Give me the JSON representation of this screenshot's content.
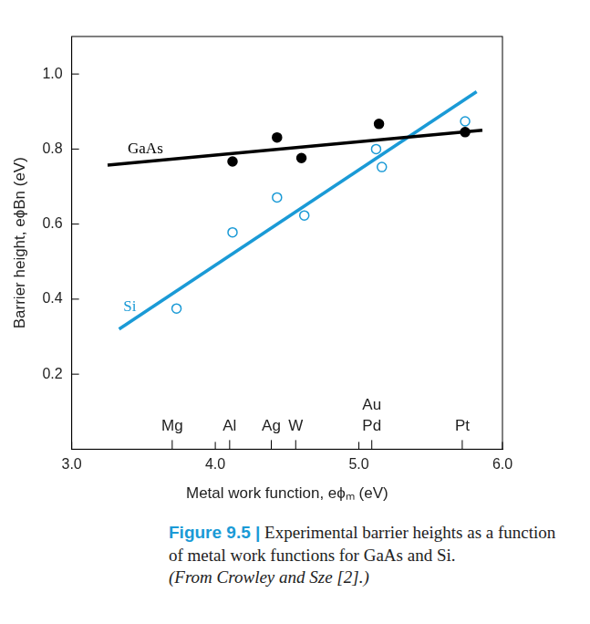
{
  "chart_data": {
    "type": "scatter",
    "x_label": "Metal work function, eϕₘ (eV)",
    "y_label": "Barrier height, eϕBn (eV)",
    "xlim": [
      3.0,
      6.0
    ],
    "xticks": [
      {
        "value": 3,
        "label": "3.0"
      },
      {
        "value": 4,
        "label": "4.0"
      },
      {
        "value": 5,
        "label": "5.0"
      },
      {
        "value": 6,
        "label": "6.0"
      }
    ],
    "ylim": [
      0,
      1.1
    ],
    "yticks": [
      {
        "value": 0.2,
        "label": "0.2"
      },
      {
        "value": 0.4,
        "label": "0.4"
      },
      {
        "value": 0.6,
        "label": "0.6"
      },
      {
        "value": 0.8,
        "label": "0.8"
      },
      {
        "value": 1.0,
        "label": "1.0"
      }
    ],
    "grid": false,
    "series": [
      {
        "name": "GaAs",
        "color": "#000000",
        "marker": "filled",
        "x": [
          4.12,
          4.43,
          4.6,
          5.14,
          5.74
        ],
        "values": [
          0.767,
          0.831,
          0.776,
          0.867,
          0.845
        ],
        "fit": {
          "x": [
            3.25,
            5.86
          ],
          "values": [
            0.757,
            0.85
          ]
        },
        "label_x": 3.39,
        "label_y": 0.8
      },
      {
        "name": "Si",
        "color": "#1a9ad6",
        "marker": "open",
        "x": [
          3.73,
          4.12,
          4.43,
          4.62,
          5.12,
          5.16,
          5.74
        ],
        "values": [
          0.375,
          0.578,
          0.671,
          0.623,
          0.8,
          0.752,
          0.874
        ],
        "fit": {
          "x": [
            3.33,
            5.82
          ],
          "values": [
            0.32,
            0.953
          ]
        },
        "label_x": 3.36,
        "label_y": 0.38
      }
    ],
    "annotations": [
      {
        "text": "Mg",
        "x": 3.7,
        "y": 0.06
      },
      {
        "text": "Al",
        "x": 4.1,
        "y": 0.06
      },
      {
        "text": "Ag",
        "x": 4.39,
        "y": 0.06
      },
      {
        "text": "W",
        "x": 4.56,
        "y": 0.06
      },
      {
        "text": "Au",
        "x": 5.09,
        "y": 0.117
      },
      {
        "text": "Pd",
        "x": 5.09,
        "y": 0.06
      },
      {
        "text": "Pt",
        "x": 5.72,
        "y": 0.06
      }
    ],
    "caption": {
      "figure": "Figure 9.5 |",
      "text": "Experimental barrier heights as a function of metal work functions for GaAs and Si.",
      "source": "(From Crowley and Sze [2].)"
    }
  }
}
